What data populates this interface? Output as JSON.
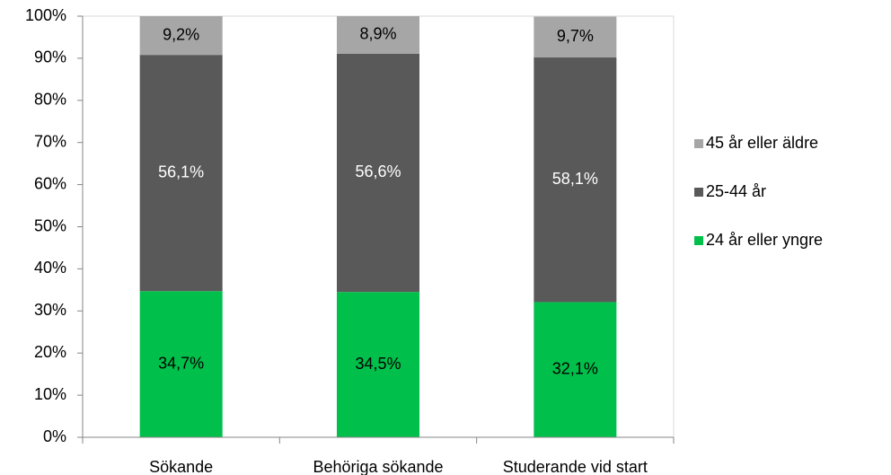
{
  "chart_data": {
    "type": "stacked_bar",
    "categories": [
      "Sökande",
      "Behöriga sökande",
      "Studerande vid start"
    ],
    "series": [
      {
        "name": "24 år eller yngre",
        "color": "#00c04b",
        "label_color": "#000000",
        "values": [
          34.7,
          34.5,
          32.1
        ],
        "value_labels": [
          "34,7%",
          "34,5%",
          "32,1%"
        ]
      },
      {
        "name": "25-44 år",
        "color": "#595959",
        "label_color": "#ffffff",
        "values": [
          56.1,
          56.6,
          58.1
        ],
        "value_labels": [
          "56,1%",
          "56,6%",
          "58,1%"
        ]
      },
      {
        "name": "45 år eller äldre",
        "color": "#a6a6a6",
        "label_color": "#000000",
        "values": [
          9.2,
          8.9,
          9.7
        ],
        "value_labels": [
          "9,2%",
          "8,9%",
          "9,7%"
        ]
      }
    ],
    "ylim": [
      0,
      100
    ],
    "yticks": [
      {
        "value": 0,
        "label": "0%"
      },
      {
        "value": 10,
        "label": "10%"
      },
      {
        "value": 20,
        "label": "20%"
      },
      {
        "value": 30,
        "label": "30%"
      },
      {
        "value": 40,
        "label": "40%"
      },
      {
        "value": 50,
        "label": "50%"
      },
      {
        "value": 60,
        "label": "60%"
      },
      {
        "value": 70,
        "label": "70%"
      },
      {
        "value": 80,
        "label": "80%"
      },
      {
        "value": 90,
        "label": "90%"
      },
      {
        "value": 100,
        "label": "100%"
      }
    ],
    "legend": "right",
    "grid": false
  }
}
